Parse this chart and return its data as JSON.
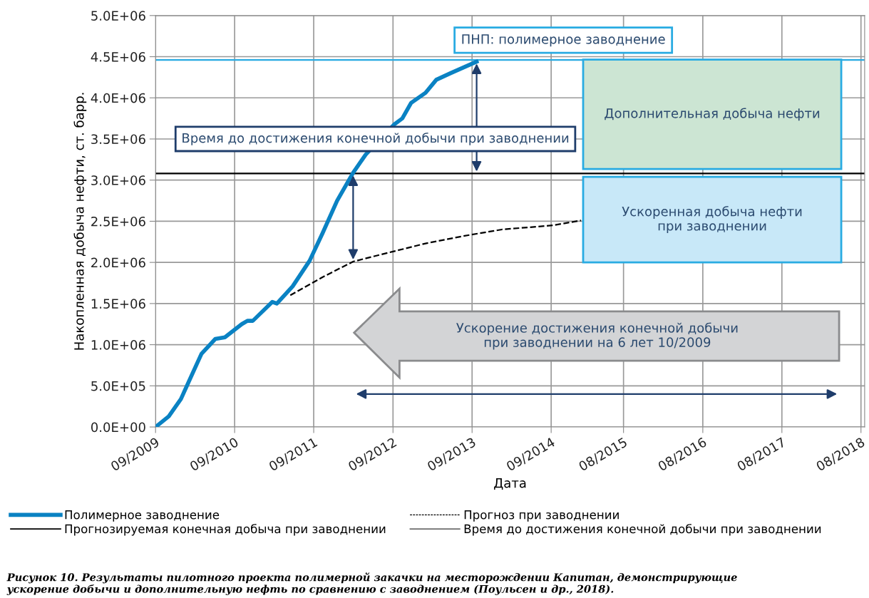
{
  "chart_data": {
    "type": "line",
    "xlabel": "Дата",
    "ylabel": "Накопленная добыча нефти, ст. барр.",
    "xlim": [
      "2009-09-15",
      "2018-09-01"
    ],
    "xticks": [
      {
        "value": "2009-09-15",
        "label": "09/2009"
      },
      {
        "value": "2010-09-15",
        "label": "09/2010"
      },
      {
        "value": "2011-09-15",
        "label": "09/2011"
      },
      {
        "value": "2012-09-15",
        "label": "09/2012"
      },
      {
        "value": "2013-09-15",
        "label": "09/2013"
      },
      {
        "value": "2014-09-15",
        "label": "09/2014"
      },
      {
        "value": "2015-08-15",
        "label": "08/2015"
      },
      {
        "value": "2016-08-15",
        "label": "08/2016"
      },
      {
        "value": "2017-08-15",
        "label": "08/2017"
      },
      {
        "value": "2018-08-15",
        "label": "08/2018"
      }
    ],
    "ylim": [
      0,
      5000000
    ],
    "yticks": [
      {
        "value": 0,
        "label": "0.0E+00"
      },
      {
        "value": 500000,
        "label": "5.0E+05"
      },
      {
        "value": 1000000,
        "label": "1.0E+06"
      },
      {
        "value": 1500000,
        "label": "1.5E+06"
      },
      {
        "value": 2000000,
        "label": "2.0E+06"
      },
      {
        "value": 2500000,
        "label": "2.5E+06"
      },
      {
        "value": 3000000,
        "label": "3.0E+06"
      },
      {
        "value": 3500000,
        "label": "3.5E+06"
      },
      {
        "value": 4000000,
        "label": "4.0E+06"
      },
      {
        "value": 4500000,
        "label": "4.5E+06"
      },
      {
        "value": 5000000,
        "label": "5.0E+06"
      }
    ],
    "grid": true,
    "legend": "bottom",
    "series": [
      {
        "name": "Полимерное заводнение",
        "color": "#0a82c3",
        "line_style": "solid",
        "x": [
          "2009-09-15",
          "2009-11-15",
          "2010-01-10",
          "2010-04-15",
          "2010-06-18",
          "2010-08-01",
          "2010-10-18",
          "2010-11-13",
          "2010-12-08",
          "2011-03-08",
          "2011-03-29",
          "2011-06-10",
          "2011-08-27",
          "2011-10-25",
          "2012-01-01",
          "2012-03-15",
          "2012-05-12",
          "2012-09-22",
          "2012-10-28",
          "2012-12-08",
          "2013-02-12",
          "2013-04-03",
          "2013-06-08",
          "2013-10-06"
        ],
        "values": [
          0,
          130000,
          340000,
          890000,
          1070000,
          1090000,
          1250000,
          1290000,
          1290000,
          1520000,
          1500000,
          1710000,
          2020000,
          2350000,
          2750000,
          3090000,
          3310000,
          3680000,
          3750000,
          3940000,
          4060000,
          4220000,
          4300000,
          4440000
        ]
      },
      {
        "name": "Прогноз при заводнении",
        "color": "#000000",
        "line_style": "dashed",
        "x": [
          "2011-05-30",
          "2011-10-25",
          "2012-03-15",
          "2012-09-12",
          "2013-02-12",
          "2013-08-05",
          "2014-01-31",
          "2014-09-22",
          "2015-01-31"
        ],
        "values": [
          1600000,
          1820000,
          2010000,
          2130000,
          2230000,
          2320000,
          2400000,
          2450000,
          2510000
        ]
      }
    ],
    "ref_lines": [
      {
        "axis": "y",
        "value": 4460000,
        "label": "ПНП: полимерное заводнение",
        "color": "#29abe2"
      },
      {
        "axis": "y",
        "value": 3080000,
        "label": "Прогнозируемая конечная добыча при заводнении",
        "color": "#000000"
      }
    ],
    "annotations": [
      "Время до достижения конечной добычи при заводнении",
      "Дополнительная добыча нефти",
      "Ускоренная добыча нефти\nпри заводнении",
      "Ускорение достижения конечной добычи\nпри заводнении на 6 лет 10/2009",
      "Время до достижения конечной добычи при заводнении",
      "Рисунок 10. Результаты пилотного проекта полимерной закачки на месторождении Капитан, демонстрирующие\nускорение добычи и дополнительную нефть по сравнению с заводнением (Поульсен и др., 2018)."
    ]
  }
}
